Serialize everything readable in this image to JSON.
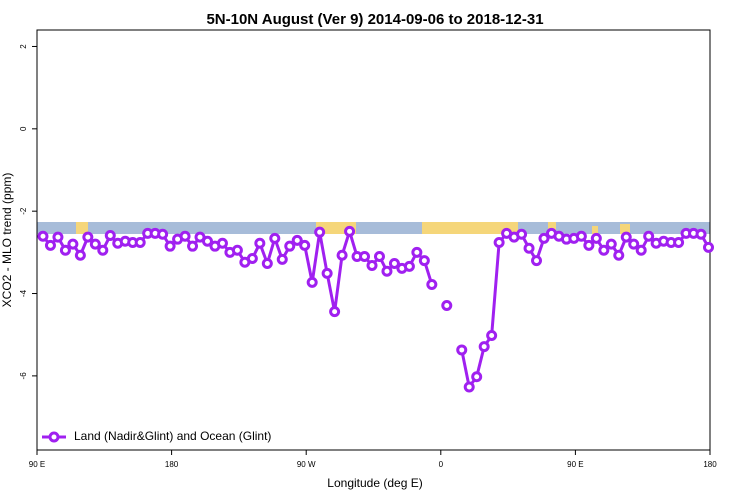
{
  "chart_data": {
    "type": "line",
    "title": "5N-10N August (Ver 9)   2014-09-06 to 2018-12-31",
    "x_label": "Longitude (deg E)",
    "y_label": "XCO2 - MLO trend (ppm)",
    "xlim": [
      90,
      540
    ],
    "ylim": [
      -7.8,
      2.4
    ],
    "xticks": [
      {
        "value": 90,
        "label": "90 E"
      },
      180,
      {
        "value": 270,
        "label": "90 W"
      },
      {
        "value": 360,
        "label": "0"
      },
      {
        "value": 450,
        "label": "90 E"
      },
      {
        "value": 540,
        "label": "180"
      }
    ],
    "yticks": [
      2,
      0,
      -2,
      -4,
      -6
    ],
    "legend": "bottom-left",
    "x": [
      94,
      99,
      104,
      109,
      114,
      119,
      124,
      129,
      134,
      139,
      144,
      149,
      154,
      159,
      164,
      169,
      174,
      179,
      184,
      189,
      194,
      199,
      204,
      209,
      214,
      219,
      224,
      229,
      234,
      239,
      244,
      249,
      254,
      259,
      264,
      269,
      274,
      279,
      284,
      289,
      294,
      299,
      304,
      309,
      314,
      319,
      324,
      329,
      334,
      339,
      344,
      349,
      354,
      359,
      364,
      369,
      374,
      379,
      384,
      389,
      394,
      399,
      404,
      409,
      414,
      419,
      424,
      429,
      434,
      439,
      444,
      449,
      454,
      459,
      464,
      469,
      474,
      479,
      484,
      489,
      494,
      499,
      504,
      509,
      514,
      519,
      524,
      529,
      534,
      539
    ],
    "series": [
      {
        "name": "Land (Nadir&Glint) and Ocean (Glint)",
        "color": "#a020f0",
        "values": [
          -2.61,
          -2.83,
          -2.63,
          -2.95,
          -2.8,
          -3.07,
          -2.63,
          -2.8,
          -2.95,
          -2.59,
          -2.78,
          -2.73,
          -2.76,
          -2.76,
          -2.54,
          -2.54,
          -2.56,
          -2.85,
          -2.68,
          -2.61,
          -2.85,
          -2.63,
          -2.73,
          -2.85,
          -2.78,
          -3.0,
          -2.95,
          -3.24,
          -3.15,
          -2.78,
          -3.27,
          -2.66,
          -3.17,
          -2.85,
          -2.71,
          -2.83,
          -3.73,
          -2.51,
          -3.51,
          -4.44,
          -3.07,
          -2.49,
          -3.1,
          -3.1,
          -3.32,
          -3.1,
          -3.46,
          -3.27,
          -3.39,
          -3.34,
          -3.0,
          -3.2,
          -3.78,
          null,
          -4.29,
          null,
          -5.37,
          -6.27,
          -6.02,
          -5.29,
          -5.02,
          -2.76,
          -2.54,
          -2.63,
          -2.56,
          -2.9,
          -3.2,
          -2.66,
          -2.54,
          -2.61,
          -2.68,
          -2.66,
          -2.61,
          -2.83,
          -2.66,
          -2.95,
          -2.8,
          -3.07,
          -2.63,
          -2.8,
          -2.95,
          -2.61,
          -2.78,
          -2.73,
          -2.76,
          -2.76,
          -2.54,
          -2.54,
          -2.56,
          -2.88
        ]
      }
    ]
  }
}
